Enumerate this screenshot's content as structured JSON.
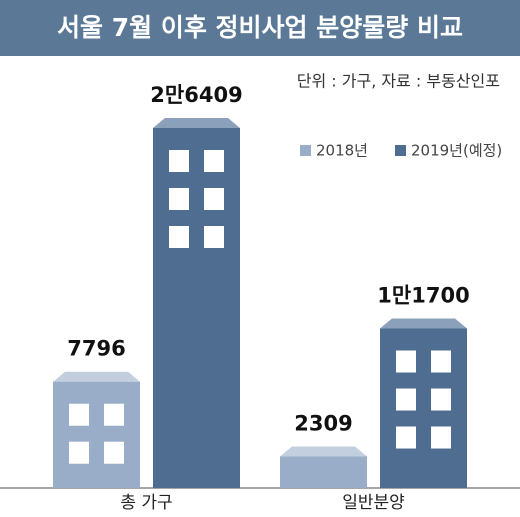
{
  "chart_data": {
    "type": "bar",
    "title": "서울 7월 이후 정비사업 분양물량 비교",
    "subtitle": "단위 : 가구, 자료 : 부동산인포",
    "categories": [
      "총 가구",
      "일반분양"
    ],
    "series": [
      {
        "name": "2018년",
        "color": "#9aadc8",
        "values": [
          7796,
          2309
        ],
        "value_labels": [
          "7796",
          "2309"
        ]
      },
      {
        "name": "2019년(예정)",
        "color": "#4e6d91",
        "values": [
          26409,
          11700
        ],
        "value_labels": [
          "2만6409",
          "1만1700"
        ]
      }
    ]
  }
}
